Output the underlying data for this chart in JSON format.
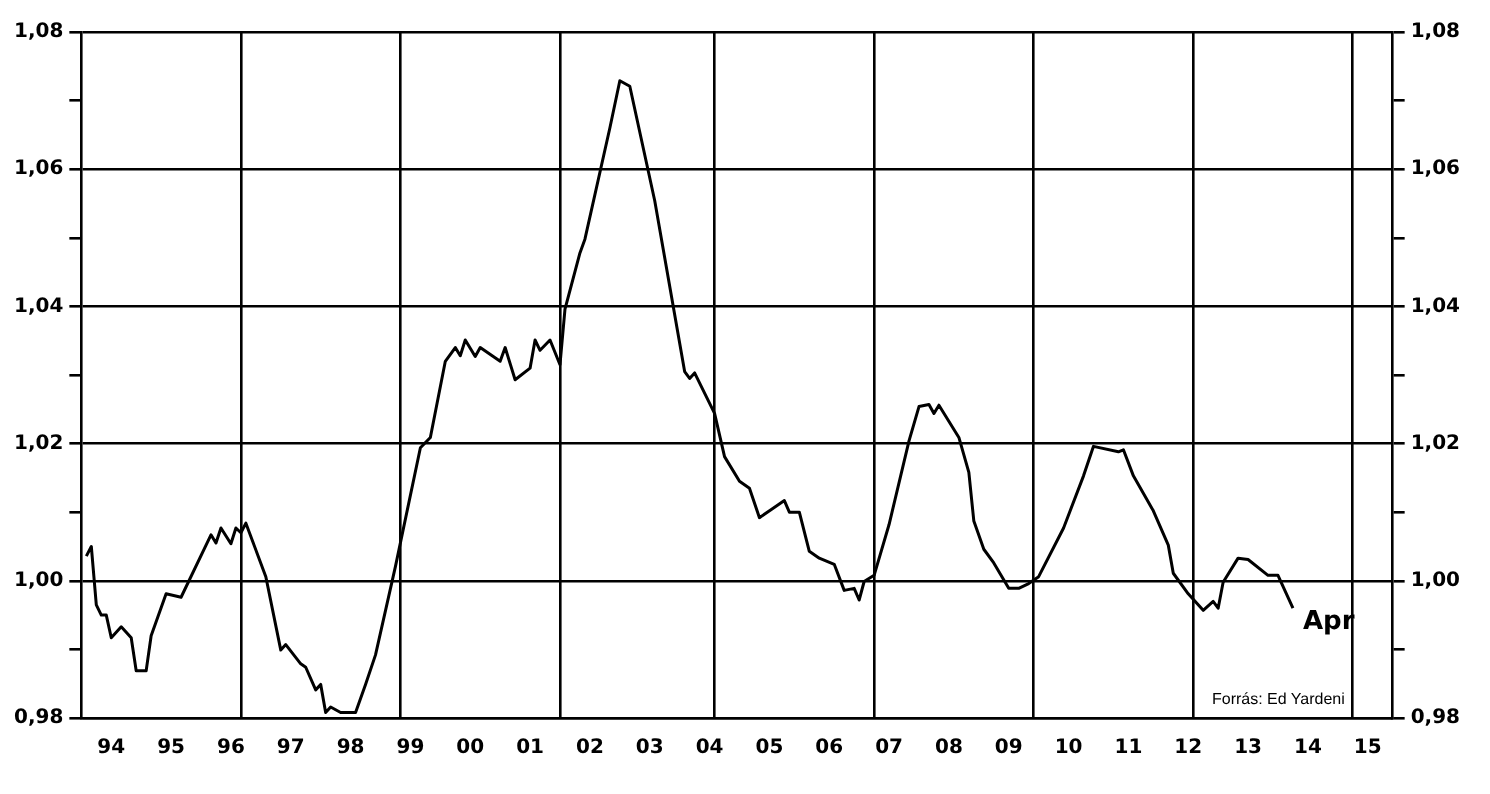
{
  "chart_data": {
    "type": "line",
    "marker": "none",
    "line_style": "solid",
    "grid": true,
    "legend": false,
    "xlim": [
      "1994-01",
      "2015-12"
    ],
    "xticks": [
      {
        "value": "1994-07",
        "label": "94"
      },
      {
        "value": "1995-07",
        "label": "95"
      },
      {
        "value": "1996-07",
        "label": "96"
      },
      {
        "value": "1997-07",
        "label": "97"
      },
      {
        "value": "1998-07",
        "label": "98"
      },
      {
        "value": "1999-07",
        "label": "99"
      },
      {
        "value": "2000-07",
        "label": "00"
      },
      {
        "value": "2001-07",
        "label": "01"
      },
      {
        "value": "2002-07",
        "label": "02"
      },
      {
        "value": "2003-07",
        "label": "03"
      },
      {
        "value": "2004-07",
        "label": "04"
      },
      {
        "value": "2005-07",
        "label": "05"
      },
      {
        "value": "2006-07",
        "label": "06"
      },
      {
        "value": "2007-07",
        "label": "07"
      },
      {
        "value": "2008-07",
        "label": "08"
      },
      {
        "value": "2009-07",
        "label": "09"
      },
      {
        "value": "2010-07",
        "label": "10"
      },
      {
        "value": "2011-07",
        "label": "11"
      },
      {
        "value": "2012-07",
        "label": "12"
      },
      {
        "value": "2013-07",
        "label": "13"
      },
      {
        "value": "2014-07",
        "label": "14"
      },
      {
        "value": "2015-07",
        "label": "15"
      },
      {
        "value": "1996-09",
        "label": null
      },
      {
        "value": "1999-05",
        "label": null
      },
      {
        "value": "2002-01",
        "label": null
      },
      {
        "value": "2004-08",
        "label": null
      },
      {
        "value": "2007-04",
        "label": null
      },
      {
        "value": "2009-12",
        "label": null
      },
      {
        "value": "2012-08",
        "label": null
      },
      {
        "value": "2015-04",
        "label": null
      }
    ],
    "ylim": [
      0.98,
      1.08
    ],
    "yticks": [
      {
        "value": 0.98,
        "label": "0,98"
      },
      {
        "value": 0.99,
        "label": null
      },
      {
        "value": 1.0,
        "label": "1,00"
      },
      {
        "value": 1.01,
        "label": null
      },
      {
        "value": 1.02,
        "label": "1,02"
      },
      {
        "value": 1.03,
        "label": null
      },
      {
        "value": 1.04,
        "label": "1,04"
      },
      {
        "value": 1.05,
        "label": null
      },
      {
        "value": 1.06,
        "label": "1,06"
      },
      {
        "value": 1.07,
        "label": null
      },
      {
        "value": 1.08,
        "label": "1,08"
      }
    ],
    "y2lim": [
      0.98,
      1.08
    ],
    "y2ticks": [
      {
        "value": 0.98,
        "label": "0,98"
      },
      {
        "value": 0.99,
        "label": null
      },
      {
        "value": 1.0,
        "label": "1,00"
      },
      {
        "value": 1.01,
        "label": null
      },
      {
        "value": 1.02,
        "label": "1,02"
      },
      {
        "value": 1.03,
        "label": null
      },
      {
        "value": 1.04,
        "label": "1,04"
      },
      {
        "value": 1.05,
        "label": null
      },
      {
        "value": 1.06,
        "label": "1,06"
      },
      {
        "value": 1.07,
        "label": null
      },
      {
        "value": 1.08,
        "label": "1,08"
      }
    ],
    "series": [
      {
        "color": "#000000",
        "x": [
          "1994-02",
          "1994-03",
          "1994-04",
          "1994-05",
          "1994-06",
          "1994-07",
          "1994-09",
          "1994-11",
          "1994-12",
          "1995-02",
          "1995-03",
          "1995-06",
          "1995-09",
          "1996-03",
          "1996-04",
          "1996-05",
          "1996-07",
          "1996-08",
          "1996-09",
          "1996-10",
          "1997-02",
          "1997-05",
          "1997-06",
          "1997-09",
          "1997-10",
          "1997-12",
          "1998-01",
          "1998-02",
          "1998-03",
          "1998-05",
          "1998-08",
          "1998-10",
          "1998-12",
          "1999-04",
          "1999-09",
          "1999-11",
          "2000-02",
          "2000-04",
          "2000-05",
          "2000-06",
          "2000-08",
          "2000-09",
          "2001-01",
          "2001-02",
          "2001-04",
          "2001-07",
          "2001-08",
          "2001-09",
          "2001-11",
          "2002-01",
          "2002-02",
          "2002-05",
          "2002-06",
          "2002-11",
          "2003-01",
          "2003-03",
          "2003-08",
          "2004-02",
          "2004-03",
          "2004-04",
          "2004-08",
          "2004-10",
          "2005-01",
          "2005-03",
          "2005-05",
          "2005-10",
          "2005-11",
          "2006-01",
          "2006-03",
          "2006-05",
          "2006-08",
          "2006-10",
          "2006-12",
          "2007-01",
          "2007-02",
          "2007-04",
          "2007-07",
          "2007-11",
          "2008-01",
          "2008-03",
          "2008-04",
          "2008-05",
          "2008-09",
          "2008-11",
          "2008-12",
          "2009-02",
          "2009-04",
          "2009-07",
          "2009-09",
          "2009-11",
          "2010-01",
          "2010-06",
          "2010-10",
          "2010-12",
          "2011-05",
          "2011-06",
          "2011-08",
          "2011-12",
          "2012-03",
          "2012-04",
          "2012-07",
          "2012-10",
          "2012-12",
          "2013-01",
          "2013-02",
          "2013-05",
          "2013-07",
          "2013-11",
          "2014-01",
          "2014-04"
        ],
        "values": [
          1.0036,
          1.005,
          0.9965,
          0.995,
          0.995,
          0.9917,
          0.9933,
          0.9917,
          0.9869,
          0.9869,
          0.992,
          0.9981,
          0.9976,
          1.0067,
          1.0055,
          1.0077,
          1.0054,
          1.0077,
          1.007,
          1.0084,
          1.0006,
          0.9899,
          0.9907,
          0.9879,
          0.9874,
          0.9841,
          0.9849,
          0.9808,
          0.9816,
          0.9808,
          0.9808,
          0.9849,
          0.9892,
          1.0021,
          1.0194,
          1.0209,
          1.032,
          1.034,
          1.0328,
          1.0351,
          1.0327,
          1.034,
          1.032,
          1.034,
          1.0293,
          1.031,
          1.0351,
          1.0336,
          1.0351,
          1.0315,
          1.0396,
          1.0478,
          1.0498,
          1.066,
          1.0729,
          1.0721,
          1.0554,
          1.0305,
          1.0295,
          1.0303,
          1.0244,
          1.0181,
          1.0145,
          1.0135,
          1.0092,
          1.0117,
          1.01,
          1.01,
          1.0043,
          1.0033,
          1.0024,
          0.9986,
          0.9989,
          0.9972,
          0.9999,
          1.0008,
          1.0082,
          1.0204,
          1.0254,
          1.0257,
          1.0244,
          1.0256,
          1.0209,
          1.0158,
          1.0087,
          1.0046,
          1.0026,
          0.9989,
          0.9989,
          0.9996,
          1.0006,
          1.0077,
          1.0153,
          1.0196,
          1.0188,
          1.0191,
          1.0153,
          1.0102,
          1.0052,
          1.0011,
          0.9981,
          0.9957,
          0.997,
          0.996,
          0.9998,
          1.0033,
          1.0031,
          1.0008,
          1.0008,
          0.996
        ]
      }
    ],
    "annotations": [
      {
        "text": "Apr",
        "x": "2014-04",
        "y": 0.996
      },
      "Forrás: Ed Yardeni"
    ]
  }
}
